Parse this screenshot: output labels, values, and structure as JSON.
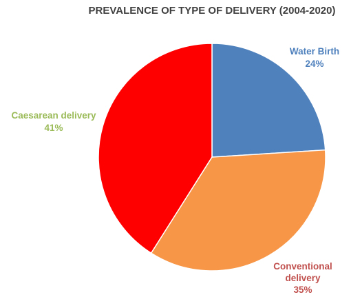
{
  "chart_data": {
    "type": "pie",
    "title": "PREVALENCE OF TYPE OF DELIVERY (2004-2020)",
    "slices": [
      {
        "name": "Water Birth",
        "value": 24,
        "label_lines": [
          "Water Birth",
          "24%"
        ],
        "color": "#4F81BD",
        "label_color": "#4F81BD"
      },
      {
        "name": "Conventional delivery",
        "value": 35,
        "label_lines": [
          "Conventional",
          "delivery",
          "35%"
        ],
        "color": "#F79646",
        "label_color": "#C0504D"
      },
      {
        "name": "Caesarean delivery",
        "value": 41,
        "label_lines": [
          "Caesarean delivery",
          "41%"
        ],
        "color": "#FF0000",
        "label_color": "#9BBB59"
      }
    ],
    "legend": false
  }
}
